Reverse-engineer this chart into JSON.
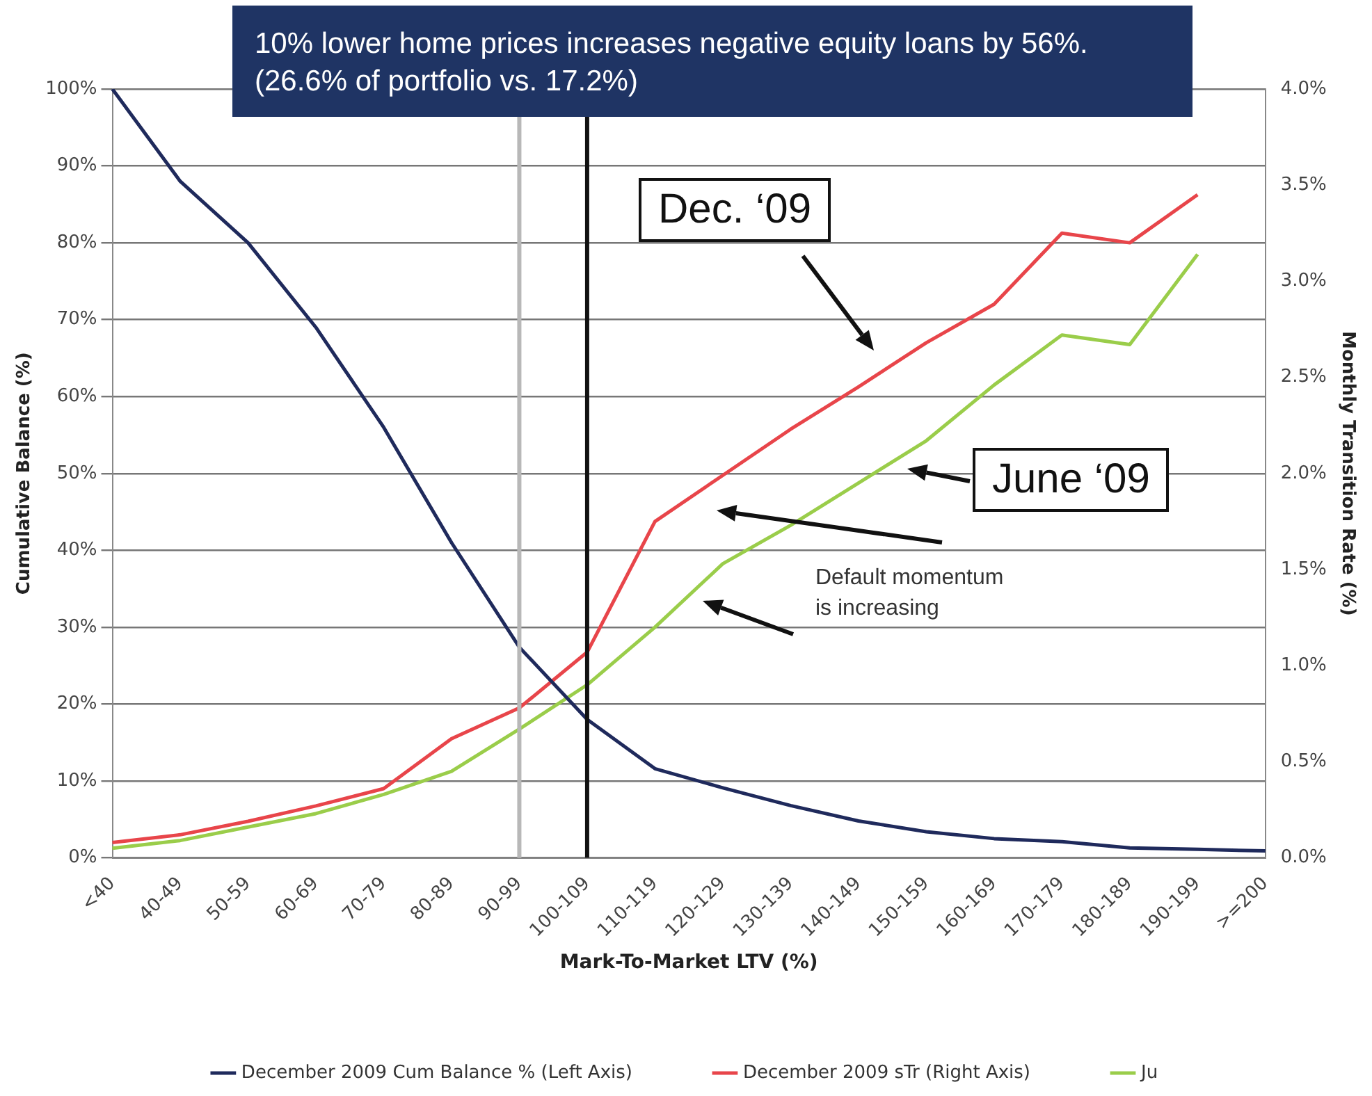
{
  "chart_data": {
    "type": "line",
    "title": "10% lower home prices increases negative equity loans by 56%. (26.6% of portfolio vs. 17.2%)",
    "xlabel": "Mark-To-Market LTV (%)",
    "ylabel": "Cumulative Balance (%)",
    "y2label": "Monthly Transition Rate (%)",
    "categories": [
      "<40",
      "40-49",
      "50-59",
      "60-69",
      "70-79",
      "80-89",
      "90-99",
      "100-109",
      "110-119",
      "120-129",
      "130-139",
      "140-149",
      "150-159",
      "160-169",
      "170-179",
      "180-189",
      "190-199",
      ">=200"
    ],
    "series": [
      {
        "name": "December 2009 Cum Balance % (Left Axis)",
        "color": "#1f2a5c",
        "values": [
          100,
          88,
          80,
          69,
          56,
          41,
          27.4,
          18,
          11.6,
          9.1,
          6.8,
          4.8,
          3.4,
          2.5,
          2.1,
          1.3,
          1.1,
          0.9
        ]
      },
      {
        "name": "December 2009 sTr (Right Axis)",
        "color": "#e8454a",
        "axis": "y2",
        "values": [
          0.08,
          0.12,
          0.19,
          0.27,
          0.36,
          0.62,
          0.78,
          1.07,
          1.75,
          1.99,
          2.23,
          2.45,
          2.68,
          2.88,
          3.25,
          3.2,
          3.45,
          null
        ]
      },
      {
        "name": "Ju",
        "color": "#9acd4a",
        "axis": "y2",
        "values": [
          0.05,
          0.09,
          0.16,
          0.23,
          0.33,
          0.45,
          0.67,
          0.9,
          1.2,
          1.53,
          1.73,
          1.95,
          2.17,
          2.46,
          2.72,
          2.67,
          3.14,
          null
        ]
      }
    ],
    "ylim": [
      0,
      100
    ],
    "yticks": [
      {
        "value": 0,
        "label": "0%"
      },
      {
        "value": 10,
        "label": "10%"
      },
      {
        "value": 20,
        "label": "20%"
      },
      {
        "value": 30,
        "label": "30%"
      },
      {
        "value": 40,
        "label": "40%"
      },
      {
        "value": 50,
        "label": "50%"
      },
      {
        "value": 60,
        "label": "60%"
      },
      {
        "value": 70,
        "label": "70%"
      },
      {
        "value": 80,
        "label": "80%"
      },
      {
        "value": 90,
        "label": "90%"
      },
      {
        "value": 100,
        "label": "100%"
      }
    ],
    "y2lim": [
      0,
      4
    ],
    "y2ticks": [
      {
        "value": 0,
        "label": "0.0%"
      },
      {
        "value": 0.5,
        "label": "0.5%"
      },
      {
        "value": 1,
        "label": "1.0%"
      },
      {
        "value": 1.5,
        "label": "1.5%"
      },
      {
        "value": 2,
        "label": "2.0%"
      },
      {
        "value": 2.5,
        "label": "2.5%"
      },
      {
        "value": 3,
        "label": "3.0%"
      },
      {
        "value": 3.5,
        "label": "3.5%"
      },
      {
        "value": 4,
        "label": "4.0%"
      }
    ],
    "ref_lines": [
      {
        "axis": "x",
        "value": "90-99",
        "color": "#b8b8b8"
      },
      {
        "axis": "x",
        "value": "100-109",
        "color": "#111111"
      }
    ],
    "annotations": [
      "Dec. ‘09",
      "June ‘09",
      "Default momentum\nis increasing"
    ],
    "grid": "y",
    "legend": "bottom",
    "marker": "none",
    "line_style": "solid"
  }
}
